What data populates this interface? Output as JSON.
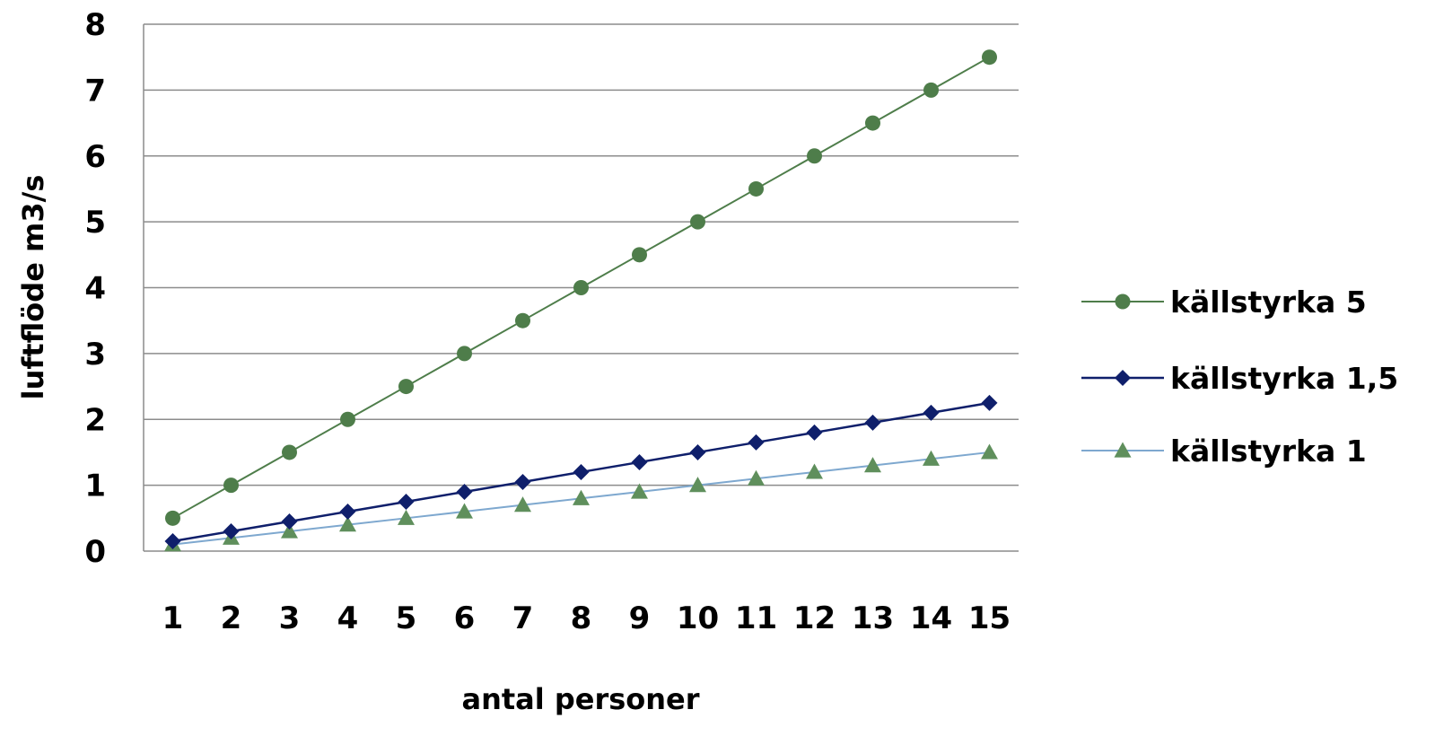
{
  "chart_data": {
    "type": "line",
    "title": "",
    "xlabel": "antal personer",
    "ylabel": "luftflöde m3/s",
    "x": [
      1,
      2,
      3,
      4,
      5,
      6,
      7,
      8,
      9,
      10,
      11,
      12,
      13,
      14,
      15
    ],
    "xticks": [
      "1",
      "2",
      "3",
      "4",
      "5",
      "6",
      "7",
      "8",
      "9",
      "10",
      "11",
      "12",
      "13",
      "14",
      "15"
    ],
    "yticks": [
      "0",
      "1",
      "2",
      "3",
      "4",
      "5",
      "6",
      "7",
      "8"
    ],
    "ylim": [
      0,
      8
    ],
    "grid": "horizontal",
    "legend_position": "right",
    "series": [
      {
        "name": "källstyrka 5",
        "color": "#4e7d4a",
        "marker": "circle",
        "values": [
          0.5,
          1.0,
          1.5,
          2.0,
          2.5,
          3.0,
          3.5,
          4.0,
          4.5,
          5.0,
          5.5,
          6.0,
          6.5,
          7.0,
          7.5
        ]
      },
      {
        "name": "källstyrka 1,5",
        "color": "#0f1f6b",
        "marker": "diamond",
        "values": [
          0.15,
          0.3,
          0.45,
          0.6,
          0.75,
          0.9,
          1.05,
          1.2,
          1.35,
          1.5,
          1.65,
          1.8,
          1.95,
          2.1,
          2.25
        ]
      },
      {
        "name": "källstyrka 1",
        "color": "#7ea8cf",
        "marker": "triangle",
        "marker_color": "#5f8f5c",
        "values": [
          0.1,
          0.2,
          0.3,
          0.4,
          0.5,
          0.6,
          0.7,
          0.8,
          0.9,
          1.0,
          1.1,
          1.2,
          1.3,
          1.4,
          1.5
        ]
      }
    ]
  }
}
